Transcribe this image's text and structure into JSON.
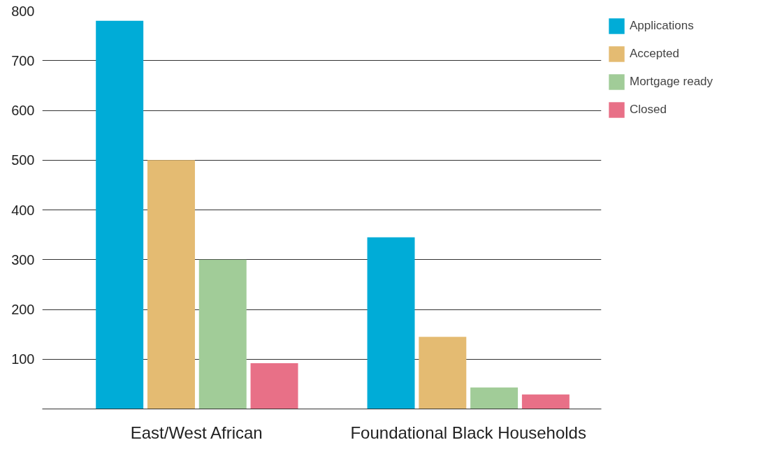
{
  "chart_data": {
    "type": "bar",
    "categories": [
      "East/West African",
      "Foundational Black Households"
    ],
    "series": [
      {
        "name": "Applications",
        "color": "#00acd7",
        "values": [
          780,
          345
        ]
      },
      {
        "name": "Accepted",
        "color": "#e4bb72",
        "values": [
          500,
          145
        ]
      },
      {
        "name": "Mortgage ready",
        "color": "#a1cc98",
        "values": [
          300,
          43
        ]
      },
      {
        "name": "Closed",
        "color": "#e87087",
        "values": [
          92,
          29
        ]
      }
    ],
    "ylim": [
      0,
      800
    ],
    "yticks": [
      {
        "value": 0,
        "label": null
      },
      100,
      200,
      300,
      400,
      500,
      600,
      700,
      800
    ],
    "grid": "y",
    "legend": "right"
  }
}
